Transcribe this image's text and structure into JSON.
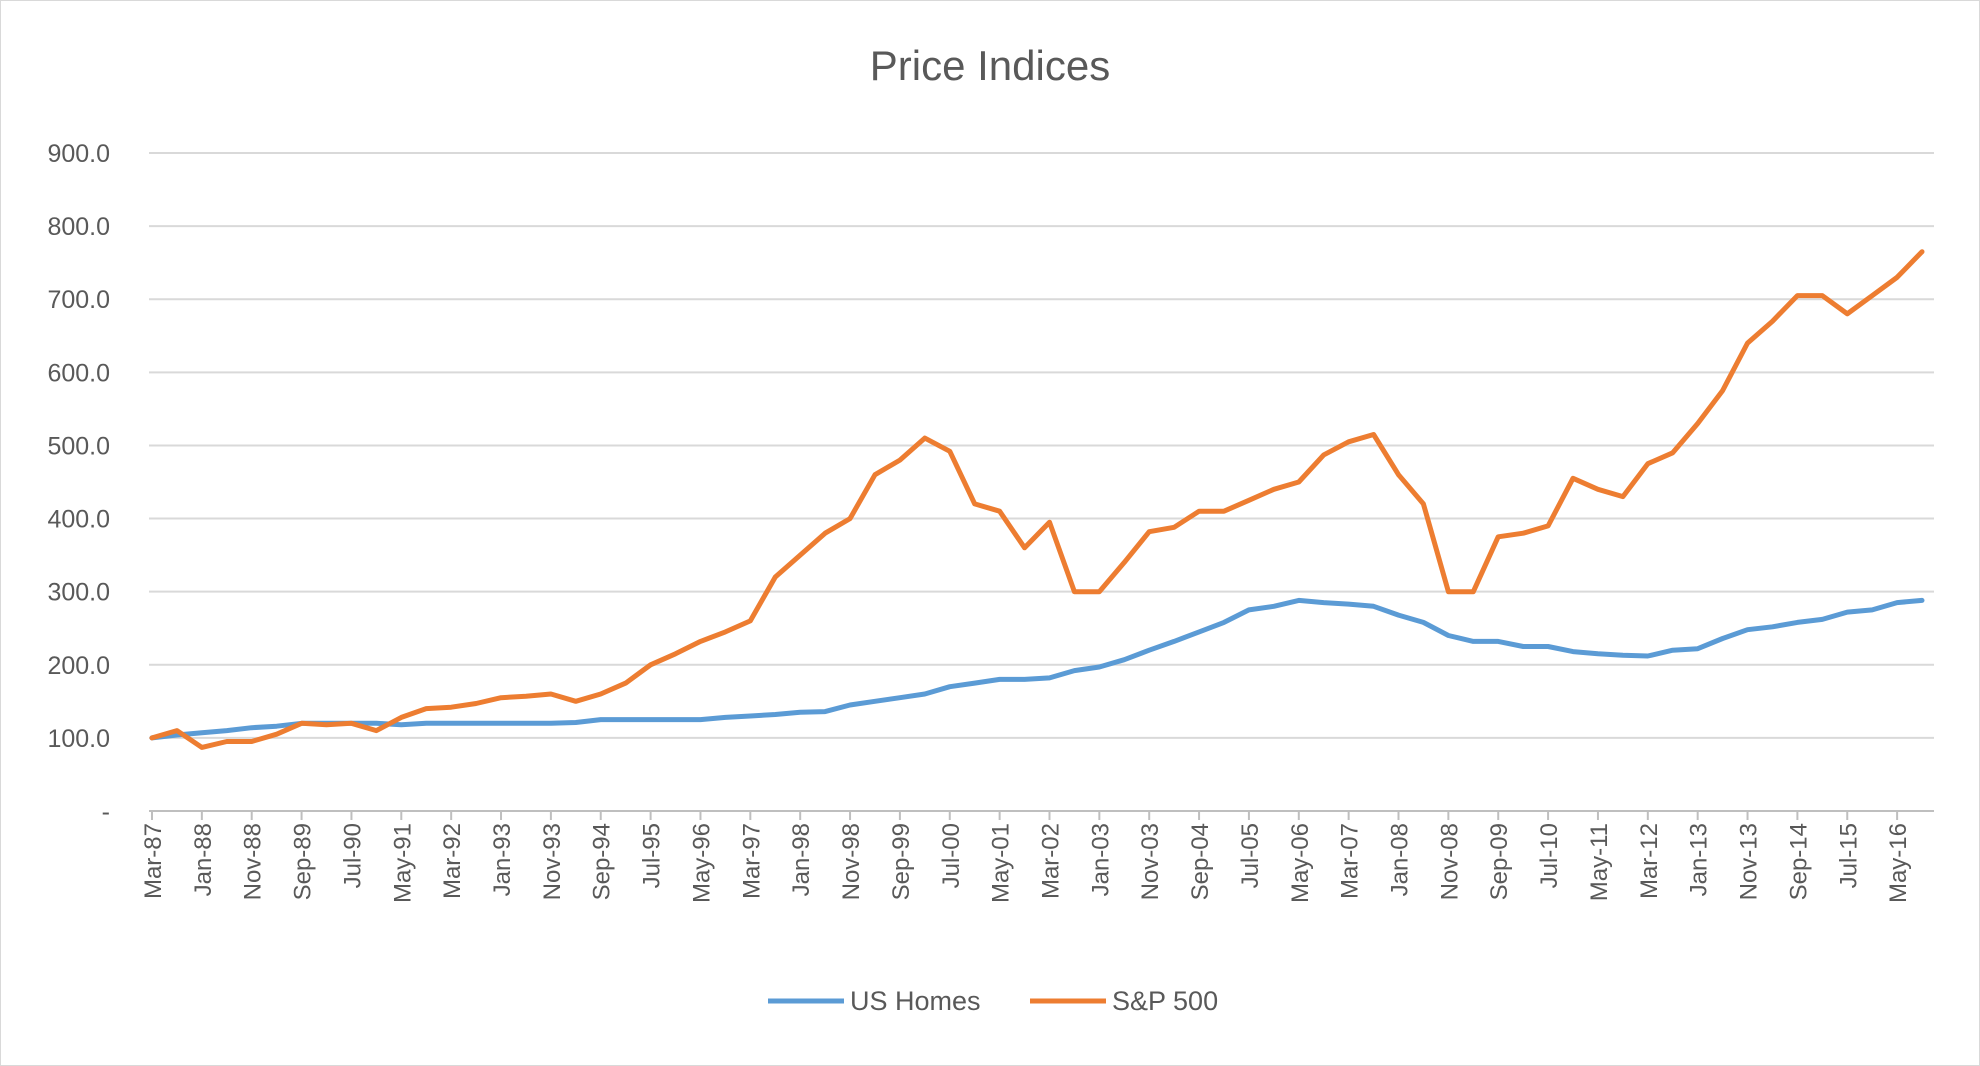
{
  "chart_data": {
    "type": "line",
    "title": "Price Indices",
    "xlabel": "",
    "ylabel": "",
    "ylim": [
      0,
      900
    ],
    "y_ticks": [
      "-",
      "100.0",
      "200.0",
      "300.0",
      "400.0",
      "500.0",
      "600.0",
      "700.0",
      "800.0",
      "900.0"
    ],
    "grid": true,
    "legend_position": "bottom",
    "x": [
      "Mar-87",
      "Aug-87",
      "Jan-88",
      "Jun-88",
      "Nov-88",
      "Apr-89",
      "Sep-89",
      "Feb-90",
      "Jul-90",
      "Dec-90",
      "May-91",
      "Oct-91",
      "Mar-92",
      "Aug-92",
      "Jan-93",
      "Jun-93",
      "Nov-93",
      "Apr-94",
      "Sep-94",
      "Feb-95",
      "Jul-95",
      "Dec-95",
      "May-96",
      "Oct-96",
      "Mar-97",
      "Aug-97",
      "Jan-98",
      "Jun-98",
      "Nov-98",
      "Apr-99",
      "Sep-99",
      "Feb-00",
      "Jul-00",
      "Dec-00",
      "May-01",
      "Oct-01",
      "Mar-02",
      "Aug-02",
      "Jan-03",
      "Jun-03",
      "Nov-03",
      "Apr-04",
      "Sep-04",
      "Feb-05",
      "Jul-05",
      "Dec-05",
      "May-06",
      "Oct-06",
      "Mar-07",
      "Aug-07",
      "Jan-08",
      "Jun-08",
      "Nov-08",
      "Apr-09",
      "Sep-09",
      "Feb-10",
      "Jul-10",
      "Dec-10",
      "May-11",
      "Oct-11",
      "Mar-12",
      "Aug-12",
      "Jan-13",
      "Jun-13",
      "Nov-13",
      "Apr-14",
      "Sep-14",
      "Feb-15",
      "Jul-15",
      "Dec-15",
      "May-16",
      "Oct-16"
    ],
    "x_tick_labels": [
      "Mar-87",
      "Jan-88",
      "Nov-88",
      "Sep-89",
      "Jul-90",
      "May-91",
      "Mar-92",
      "Jan-93",
      "Nov-93",
      "Sep-94",
      "Jul-95",
      "May-96",
      "Mar-97",
      "Jan-98",
      "Nov-98",
      "Sep-99",
      "Jul-00",
      "May-01",
      "Mar-02",
      "Jan-03",
      "Nov-03",
      "Sep-04",
      "Jul-05",
      "May-06",
      "Mar-07",
      "Jan-08",
      "Nov-08",
      "Sep-09",
      "Jul-10",
      "May-11",
      "Mar-12",
      "Jan-13",
      "Nov-13",
      "Sep-14",
      "Jul-15",
      "May-16"
    ],
    "series": [
      {
        "name": "US Homes",
        "color": "#5b9bd5",
        "values": [
          100,
          104,
          107,
          110,
          114,
          116,
          120,
          120,
          120,
          120,
          118,
          120,
          120,
          120,
          120,
          120,
          120,
          121,
          125,
          125,
          125,
          125,
          125,
          128,
          130,
          132,
          135,
          136,
          145,
          150,
          155,
          160,
          170,
          175,
          180,
          180,
          182,
          192,
          197,
          207,
          220,
          232,
          245,
          258,
          275,
          280,
          288,
          285,
          283,
          280,
          268,
          258,
          240,
          232,
          232,
          225,
          225,
          218,
          215,
          213,
          212,
          220,
          222,
          236,
          248,
          252,
          258,
          262,
          272,
          275,
          285,
          288
        ]
      },
      {
        "name": "S&P 500",
        "color": "#ed7d31",
        "values": [
          100,
          110,
          87,
          95,
          95,
          105,
          120,
          118,
          120,
          110,
          128,
          140,
          142,
          147,
          155,
          157,
          160,
          150,
          160,
          175,
          200,
          215,
          232,
          245,
          260,
          320,
          350,
          380,
          400,
          460,
          480,
          510,
          492,
          420,
          410,
          360,
          395,
          300,
          300,
          340,
          382,
          388,
          410,
          410,
          425,
          440,
          450,
          487,
          505,
          515,
          460,
          420,
          300,
          300,
          375,
          380,
          390,
          455,
          440,
          430,
          475,
          490,
          530,
          575,
          640,
          670,
          705,
          705,
          680,
          705,
          730,
          765
        ]
      }
    ]
  }
}
